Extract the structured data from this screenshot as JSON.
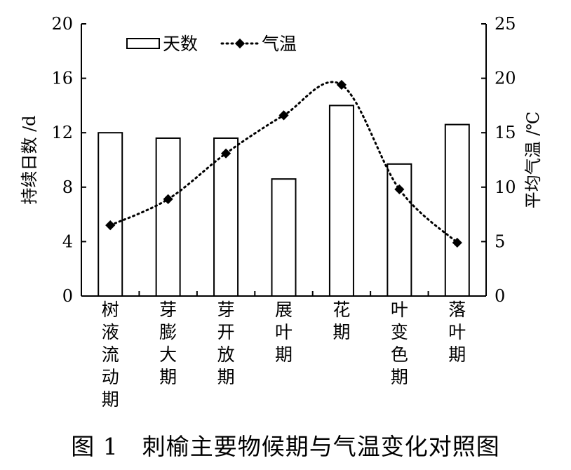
{
  "chart_data": {
    "type": "bar",
    "categories": [
      "树液流动期",
      "芽膨大期",
      "芽开放期",
      "展叶期",
      "花期",
      "叶变色期",
      "落叶期"
    ],
    "series": [
      {
        "name": "天数",
        "type": "bar",
        "axis": "left",
        "values": [
          12,
          11.6,
          11.6,
          8.6,
          14,
          9.7,
          12.6
        ]
      },
      {
        "name": "气温",
        "type": "line",
        "axis": "right",
        "smooth": true,
        "dotted": true,
        "values": [
          6.5,
          8.9,
          13.1,
          16.6,
          19.4,
          9.8,
          4.9
        ]
      }
    ],
    "ylabel": "持续日数 /d",
    "y2label": "平均气温 /℃",
    "ylim": [
      0,
      20
    ],
    "y2lim": [
      0,
      25
    ],
    "yticks": [
      0,
      4,
      8,
      12,
      16,
      20
    ],
    "y2ticks": [
      0,
      5,
      10,
      15,
      20,
      25
    ],
    "legend_position": "top-left",
    "grid": false,
    "colors": {
      "bar_fill": "#ffffff",
      "bar_stroke": "#000000",
      "line": "#000000"
    }
  },
  "caption": "图 1　刺榆主要物候期与气温变化对照图"
}
